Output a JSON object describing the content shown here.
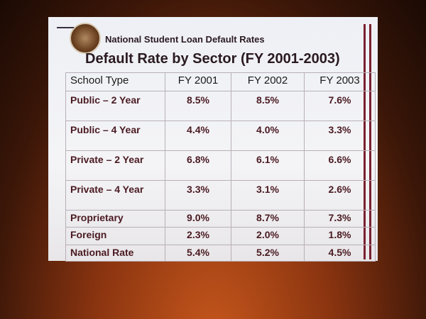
{
  "header": {
    "title": "National Student Loan Default Rates"
  },
  "table": {
    "title": "Default Rate by Sector (FY 2001-2003)",
    "columns": [
      "School Type",
      "FY 2001",
      "FY 2002",
      "FY 2003"
    ],
    "rows": [
      [
        "Public – 2 Year",
        "8.5%",
        "8.5%",
        "7.6%"
      ],
      [
        "Public – 4 Year",
        "4.4%",
        "4.0%",
        "3.3%"
      ],
      [
        "Private – 2 Year",
        "6.8%",
        "6.1%",
        "6.6%"
      ],
      [
        "Private – 4 Year",
        "3.3%",
        "3.1%",
        "2.6%"
      ],
      [
        "Proprietary",
        "9.0%",
        "8.7%",
        "7.3%"
      ],
      [
        "Foreign",
        "2.3%",
        "2.0%",
        "1.8%"
      ],
      [
        "National Rate",
        "5.4%",
        "5.2%",
        "4.5%"
      ]
    ]
  }
}
